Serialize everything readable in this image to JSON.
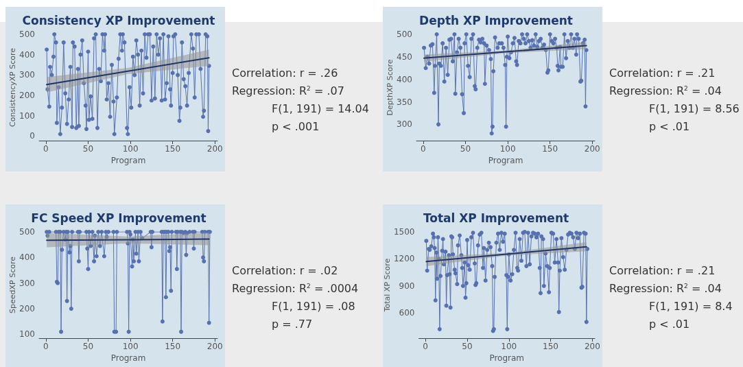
{
  "chart_data": [
    {
      "type": "line",
      "title": "Consistency XP Improvement",
      "xlabel": "Program",
      "ylabel": "ConsistencyXP Score",
      "xlim": [
        -8,
        203
      ],
      "xticks": [
        0,
        50,
        100,
        150,
        200
      ],
      "ylim": [
        -22,
        500
      ],
      "yticks": [
        0,
        100,
        200,
        300,
        400,
        500
      ],
      "marker": "circle",
      "line_style": "solid",
      "series": [
        {
          "color": "#5670b0",
          "x": [
            1,
            2,
            4,
            5,
            7,
            9,
            10,
            12,
            13,
            15,
            17,
            19,
            21,
            23,
            25,
            27,
            29,
            31,
            32,
            34,
            36,
            38,
            39,
            41,
            43,
            45,
            47,
            48,
            50,
            51,
            53,
            55,
            57,
            59,
            61,
            63,
            65,
            67,
            69,
            70,
            72,
            74,
            76,
            78,
            80,
            81,
            84,
            86,
            88,
            90,
            91,
            93,
            96,
            97,
            99,
            101,
            103,
            105,
            107,
            109,
            111,
            113,
            115,
            117,
            119,
            121,
            123,
            125,
            127,
            129,
            131,
            133,
            135,
            137,
            139,
            141,
            143,
            145,
            147,
            148,
            150,
            151,
            153,
            156,
            158,
            159,
            161,
            163,
            165,
            167,
            169,
            172,
            174,
            176,
            178,
            181,
            183,
            186,
            187,
            189,
            191,
            192,
            193
          ],
          "values": [
            425,
            230,
            145,
            340,
            300,
            390,
            500,
            460,
            65,
            240,
            10,
            140,
            460,
            210,
            60,
            180,
            340,
            45,
            460,
            440,
            40,
            330,
            50,
            400,
            470,
            260,
            150,
            35,
            415,
            80,
            195,
            85,
            480,
            500,
            40,
            330,
            270,
            500,
            420,
            500,
            180,
            260,
            95,
            350,
            170,
            10,
            190,
            380,
            500,
            420,
            500,
            460,
            40,
            10,
            240,
            140,
            390,
            300,
            470,
            400,
            150,
            420,
            210,
            500,
            385,
            500,
            500,
            175,
            440,
            185,
            500,
            400,
            480,
            175,
            500,
            180,
            260,
            490,
            230,
            150,
            310,
            490,
            500,
            300,
            75,
            140,
            460,
            280,
            245,
            150,
            310,
            500,
            430,
            190,
            500,
            500,
            330,
            95,
            125,
            500,
            490,
            25,
            345
          ]
        },
        {
          "type": "line",
          "marker": "none",
          "color": "#1f3566",
          "x": [
            1,
            97,
            193
          ],
          "values": [
            253,
            319,
            385
          ],
          "lower": [
            215,
            305,
            345
          ],
          "upper": [
            290,
            335,
            425
          ]
        }
      ],
      "annotations": [
        "Correlation: r = .26",
        "Regression: R$^{2}$ = .07",
        "F(1, 191) = 14.04",
        "p < .001"
      ]
    },
    {
      "type": "line",
      "title": "Depth XP Improvement",
      "xlabel": "Program",
      "ylabel": "DepthXP Score",
      "xlim": [
        -8,
        203
      ],
      "xticks": [
        0,
        50,
        100,
        150,
        200
      ],
      "ylim": [
        264,
        500
      ],
      "yticks": [
        300,
        350,
        400,
        450,
        500
      ],
      "marker": "circle",
      "line_style": "solid",
      "series": [
        {
          "color": "#5670b0",
          "x": [
            1,
            3,
            5,
            7,
            9,
            11,
            13,
            14,
            16,
            18,
            19,
            21,
            23,
            25,
            27,
            29,
            31,
            33,
            35,
            37,
            38,
            40,
            42,
            44,
            46,
            48,
            49,
            51,
            53,
            55,
            57,
            59,
            61,
            62,
            64,
            66,
            68,
            70,
            72,
            73,
            75,
            78,
            80,
            81,
            82,
            83,
            85,
            88,
            90,
            93,
            95,
            97,
            98,
            99,
            100,
            102,
            104,
            106,
            108,
            110,
            111,
            113,
            115,
            117,
            119,
            121,
            123,
            125,
            127,
            129,
            131,
            133,
            135,
            137,
            139,
            141,
            143,
            145,
            147,
            148,
            150,
            152,
            154,
            156,
            158,
            159,
            160,
            162,
            163,
            165,
            167,
            169,
            171,
            173,
            175,
            177,
            179,
            181,
            182,
            184,
            186,
            187,
            189,
            191,
            192,
            193
          ],
          "values": [
            470,
            425,
            450,
            435,
            475,
            478,
            370,
            430,
            500,
            300,
            435,
            430,
            480,
            395,
            470,
            410,
            488,
            490,
            440,
            500,
            368,
            460,
            490,
            470,
            367,
            325,
            480,
            500,
            430,
            405,
            490,
            500,
            385,
            378,
            470,
            488,
            482,
            490,
            480,
            390,
            475,
            465,
            445,
            280,
            295,
            418,
            493,
            470,
            480,
            480,
            470,
            432,
            295,
            450,
            495,
            447,
            460,
            480,
            492,
            440,
            432,
            485,
            480,
            500,
            490,
            480,
            500,
            485,
            470,
            487,
            475,
            500,
            472,
            485,
            490,
            470,
            477,
            465,
            415,
            420,
            500,
            485,
            480,
            490,
            470,
            430,
            420,
            472,
            428,
            428,
            500,
            447,
            485,
            470,
            500,
            470,
            490,
            455,
            500,
            490,
            395,
            397,
            480,
            488,
            340,
            465
          ]
        },
        {
          "type": "line",
          "marker": "none",
          "color": "#1f3566",
          "x": [
            1,
            97,
            193
          ],
          "values": [
            447,
            461,
            475
          ],
          "lower": [
            439,
            458,
            467
          ],
          "upper": [
            455,
            464,
            483
          ]
        }
      ],
      "annotations": [
        "Correlation: r = .21",
        "Regression: R$^{2}$ = .04",
        "F(1, 191) = 8.56",
        "p < .01"
      ]
    },
    {
      "type": "line",
      "title": "FC Speed XP Improvement",
      "xlabel": "Program",
      "ylabel": "SpeedXP Score",
      "xlim": [
        -8,
        203
      ],
      "xticks": [
        0,
        50,
        100,
        150,
        200
      ],
      "ylim": [
        85,
        500
      ],
      "yticks": [
        100,
        200,
        300,
        400,
        500
      ],
      "marker": "circle",
      "line_style": "solid",
      "series": [
        {
          "color": "#5670b0",
          "x": [
            1,
            2,
            4,
            12,
            13,
            14,
            15,
            17,
            18,
            19,
            21,
            23,
            24,
            25,
            26,
            28,
            29,
            30,
            31,
            38,
            39,
            40,
            48,
            49,
            50,
            51,
            53,
            55,
            57,
            58,
            60,
            62,
            64,
            66,
            69,
            71,
            72,
            74,
            80,
            81,
            83,
            84,
            96,
            97,
            98,
            99,
            100,
            102,
            103,
            104,
            106,
            107,
            109,
            110,
            112,
            114,
            124,
            125,
            126,
            137,
            138,
            139,
            141,
            142,
            143,
            145,
            146,
            147,
            148,
            149,
            154,
            155,
            156,
            159,
            160,
            161,
            163,
            165,
            166,
            167,
            170,
            174,
            175,
            176,
            185,
            186,
            187,
            188,
            192,
            193,
            194
          ],
          "values": [
            500,
            485,
            500,
            500,
            305,
            300,
            500,
            500,
            110,
            430,
            500,
            470,
            500,
            230,
            500,
            420,
            445,
            200,
            500,
            500,
            385,
            500,
            500,
            435,
            355,
            500,
            445,
            500,
            385,
            485,
            405,
            500,
            445,
            500,
            405,
            500,
            480,
            500,
            500,
            110,
            110,
            500,
            500,
            455,
            110,
            500,
            490,
            365,
            470,
            385,
            500,
            415,
            500,
            385,
            500,
            475,
            500,
            440,
            500,
            500,
            150,
            500,
            500,
            245,
            500,
            500,
            425,
            440,
            270,
            500,
            500,
            355,
            500,
            500,
            110,
            500,
            495,
            500,
            410,
            495,
            500,
            500,
            435,
            500,
            500,
            400,
            385,
            500,
            500,
            145,
            500
          ]
        },
        {
          "type": "line",
          "marker": "none",
          "color": "#1f3566",
          "x": [
            1,
            97,
            193
          ],
          "values": [
            467,
            469,
            472
          ],
          "lower": [
            440,
            455,
            448
          ],
          "upper": [
            495,
            482,
            497
          ]
        }
      ],
      "annotations": [
        "Correlation: r = .02",
        "Regression: R$^{2}$ = .0004",
        "F(1, 191) = .08",
        "p = .77"
      ]
    },
    {
      "type": "line",
      "title": "Total XP Improvement",
      "xlabel": "Program",
      "ylabel": "Total XP Score",
      "xlim": [
        -8,
        203
      ],
      "xticks": [
        0,
        50,
        100,
        150,
        200
      ],
      "ylim": [
        320,
        1500
      ],
      "yticks": [
        600,
        900,
        1200,
        1500
      ],
      "marker": "circle",
      "line_style": "solid",
      "series": [
        {
          "color": "#5670b0",
          "x": [
            1,
            2,
            4,
            5,
            7,
            9,
            10,
            11,
            12,
            13,
            14,
            15,
            16,
            17,
            18,
            20,
            21,
            22,
            24,
            25,
            26,
            28,
            29,
            30,
            31,
            32,
            33,
            35,
            36,
            38,
            39,
            41,
            43,
            44,
            45,
            47,
            48,
            49,
            50,
            51,
            53,
            55,
            57,
            59,
            60,
            61,
            63,
            65,
            67,
            69,
            70,
            72,
            74,
            76,
            78,
            80,
            81,
            82,
            83,
            85,
            87,
            89,
            91,
            93,
            95,
            97,
            98,
            99,
            100,
            102,
            104,
            106,
            108,
            110,
            111,
            113,
            115,
            117,
            119,
            121,
            123,
            125,
            127,
            129,
            131,
            133,
            135,
            137,
            138,
            139,
            141,
            142,
            144,
            146,
            148,
            149,
            151,
            153,
            155,
            157,
            159,
            160,
            161,
            163,
            165,
            167,
            169,
            171,
            173,
            175,
            177,
            179,
            181,
            183,
            185,
            187,
            188,
            190,
            192,
            193,
            194
          ],
          "values": [
            1400,
            1070,
            1310,
            1300,
            1340,
            1480,
            1440,
            1320,
            740,
            1270,
            980,
            1440,
            1200,
            420,
            1010,
            1290,
            1420,
            1140,
            1280,
            680,
            1020,
            1240,
            1030,
            660,
            1450,
            1440,
            1250,
            1080,
            1040,
            920,
            1350,
            1460,
            1240,
            1100,
            900,
            1160,
            770,
            930,
            1410,
            1130,
            1080,
            1440,
            1490,
            1150,
            910,
            930,
            1350,
            1470,
            1490,
            1100,
            1320,
            960,
            1300,
            1380,
            1330,
            1120,
            400,
            420,
            1000,
            1380,
            1480,
            1300,
            1490,
            1390,
            1480,
            1020,
            420,
            1000,
            1250,
            960,
            1030,
            1300,
            1490,
            1100,
            1070,
            1420,
            1180,
            1490,
            1500,
            1120,
            1490,
            1140,
            1450,
            1490,
            1480,
            1440,
            1480,
            1100,
            820,
            1450,
            1420,
            900,
            1260,
            1120,
            830,
            1100,
            1490,
            1480,
            1160,
            1420,
            1160,
            610,
            1070,
            1430,
            1220,
            1080,
            1300,
            1470,
            1490,
            1480,
            1440,
            1310,
            1490,
            1430,
            1480,
            880,
            890,
            1490,
            1480,
            500,
            1310
          ]
        },
        {
          "type": "line",
          "marker": "none",
          "color": "#1f3566",
          "x": [
            1,
            97,
            193
          ],
          "values": [
            1170,
            1252,
            1335
          ],
          "lower": [
            1120,
            1237,
            1285
          ],
          "upper": [
            1220,
            1267,
            1385
          ]
        }
      ],
      "annotations": [
        "Correlation: r = .21",
        "Regression: R$^{2}$ = .04",
        "F(1, 191) = 8.4",
        "p < .01"
      ]
    }
  ]
}
